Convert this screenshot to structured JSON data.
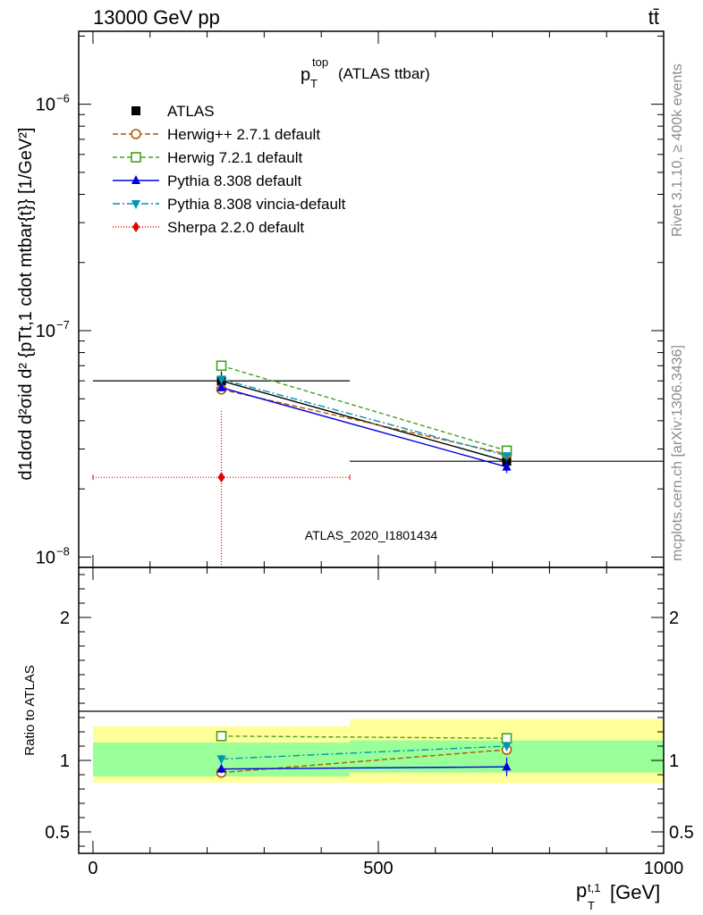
{
  "header": {
    "energy_label": "13000 GeV pp",
    "process_label": "tt̄"
  },
  "side_labels": {
    "rivet": "Rivet 3.1.10, ≥ 400k events",
    "mcplots": "mcplots.cern.ch [arXiv:1306.3436]"
  },
  "chart_data": [
    {
      "type": "scatter",
      "panel": "main",
      "title_main": "p",
      "title_sup": "top",
      "title_sub": "T",
      "title_suffix": "(ATLAS ttbar)",
      "watermark": "ATLAS_2020_I1801434",
      "ylabel": "d1dσd d²σid d² {pTt,1 cdot mtbar{t}} [1/GeV²]",
      "ylabel_parts": {
        "unit": "[1/GeV",
        "unit_sup": "2",
        "unit_close": "]"
      },
      "yscale": "log",
      "xlim": [
        -25,
        1000
      ],
      "ylim": [
        9e-09,
        2.1e-06
      ],
      "yticks": [
        {
          "value": 1e-08,
          "label": "10",
          "sup": "−8"
        },
        {
          "value": 1e-07,
          "label": "10",
          "sup": "−7"
        },
        {
          "value": 1e-06,
          "label": "10",
          "sup": "−6"
        }
      ],
      "legend_position": "top-left",
      "series": [
        {
          "name": "ATLAS",
          "color": "#000000",
          "marker": "filled-square",
          "dash": "none",
          "points": [
            {
              "x": 225,
              "y": 6e-08,
              "xerr": [
                0,
                450
              ],
              "yerr": [
                5.4e-08,
                6.6e-08
              ]
            },
            {
              "x": 725,
              "y": 2.65e-08,
              "xerr": [
                450,
                1000
              ],
              "yerr": [
                2.4e-08,
                2.9e-08
              ]
            }
          ]
        },
        {
          "name": "Herwig++ 2.7.1 default",
          "color": "#b35900",
          "marker": "open-circle",
          "dash": "6,3",
          "points": [
            {
              "x": 225,
              "y": 5.5e-08,
              "yerr": [
                5.3e-08,
                5.7e-08
              ]
            },
            {
              "x": 725,
              "y": 2.85e-08,
              "yerr": [
                2.75e-08,
                2.95e-08
              ]
            }
          ]
        },
        {
          "name": "Herwig 7.2.1 default",
          "color": "#44a020",
          "marker": "open-square",
          "dash": "5,3",
          "points": [
            {
              "x": 225,
              "y": 7e-08,
              "yerr": [
                6.8e-08,
                7.2e-08
              ]
            },
            {
              "x": 725,
              "y": 2.95e-08,
              "yerr": [
                2.85e-08,
                3.05e-08
              ]
            }
          ]
        },
        {
          "name": "Pythia 8.308 default",
          "color": "#0000e0",
          "marker": "filled-triangle-up",
          "dash": "none",
          "points": [
            {
              "x": 225,
              "y": 5.6e-08,
              "yerr": [
                5.4e-08,
                5.8e-08
              ]
            },
            {
              "x": 725,
              "y": 2.5e-08,
              "yerr": [
                2.35e-08,
                2.65e-08
              ]
            }
          ]
        },
        {
          "name": "Pythia 8.308 vincia-default",
          "color": "#0096b4",
          "marker": "filled-triangle-down",
          "dash": "8,3,2,3",
          "points": [
            {
              "x": 225,
              "y": 6.1e-08,
              "yerr": [
                5.9e-08,
                6.3e-08
              ]
            },
            {
              "x": 725,
              "y": 2.8e-08,
              "yerr": [
                2.7e-08,
                2.9e-08
              ]
            }
          ]
        },
        {
          "name": "Sherpa 2.2.0 default",
          "color": "#e00000",
          "marker": "filled-diamond",
          "dash": "1,2",
          "points": [
            {
              "x": 225,
              "y": 2.25e-08,
              "xerr": [
                0,
                450
              ],
              "yerr": [
                5e-09,
                4.5e-08
              ]
            }
          ]
        }
      ]
    },
    {
      "type": "scatter",
      "panel": "ratio",
      "ylabel": "Ratio to ATLAS",
      "xlabel": "p",
      "xlabel_sup": "t,1",
      "xlabel_sub": "T",
      "xlabel_unit": "[GeV]",
      "xlim": [
        -25,
        1000
      ],
      "ylim": [
        0.35,
        2.35
      ],
      "xticks": [
        0,
        500,
        1000
      ],
      "yticks": [
        0.5,
        1,
        2
      ],
      "uncertainty_bands": [
        {
          "xrange": [
            0,
            450
          ],
          "stat": [
            0.888,
            1.125
          ],
          "total": [
            0.845,
            1.24
          ]
        },
        {
          "xrange": [
            450,
            1000
          ],
          "stat": [
            0.915,
            1.14
          ],
          "total": [
            0.84,
            1.29
          ]
        }
      ],
      "series": [
        {
          "name": "Herwig++ 2.7.1 default",
          "color": "#b35900",
          "marker": "open-circle",
          "dash": "6,3",
          "points": [
            {
              "x": 225,
              "y": 0.915,
              "yerr": [
                0.885,
                0.945
              ]
            },
            {
              "x": 725,
              "y": 1.075,
              "yerr": [
                1.04,
                1.11
              ]
            }
          ]
        },
        {
          "name": "Herwig 7.2.1 default",
          "color": "#44a020",
          "marker": "open-square",
          "dash": "5,3",
          "points": [
            {
              "x": 225,
              "y": 1.17,
              "yerr": [
                1.135,
                1.205
              ]
            },
            {
              "x": 725,
              "y": 1.155,
              "yerr": [
                1.12,
                1.19
              ]
            }
          ]
        },
        {
          "name": "Pythia 8.308 default",
          "color": "#0000e0",
          "marker": "filled-triangle-up",
          "dash": "none",
          "points": [
            {
              "x": 225,
              "y": 0.94,
              "yerr": [
                0.91,
                0.97
              ]
            },
            {
              "x": 725,
              "y": 0.955,
              "yerr": [
                0.89,
                1.02
              ]
            }
          ]
        },
        {
          "name": "Pythia 8.308 vincia-default",
          "color": "#0096b4",
          "marker": "filled-triangle-down",
          "dash": "8,3,2,3",
          "points": [
            {
              "x": 225,
              "y": 1.01,
              "yerr": [
                0.98,
                1.04
              ]
            },
            {
              "x": 725,
              "y": 1.1,
              "yerr": [
                1.07,
                1.13
              ]
            }
          ]
        }
      ]
    }
  ]
}
